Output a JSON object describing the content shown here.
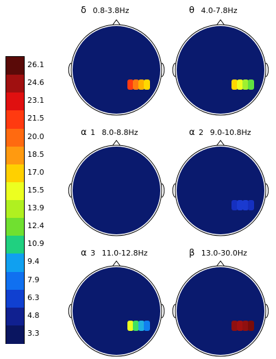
{
  "colorbar": {
    "labels": [
      "26.1",
      "24.6",
      "23.1",
      "21.5",
      "20.0",
      "18.5",
      "17.0",
      "15.5",
      "13.9",
      "12.4",
      "10.9",
      "9.4",
      "7.9",
      "6.3",
      "4.8",
      "3.3"
    ],
    "colors": [
      "#5a0a08",
      "#a01010",
      "#e01010",
      "#ff3a10",
      "#ff6a10",
      "#ff9a10",
      "#ffd000",
      "#ecff20",
      "#b0f020",
      "#70e030",
      "#20d080",
      "#10a0f0",
      "#1070f0",
      "#1040d0",
      "#102090",
      "#0a1560"
    ]
  },
  "background_color": "#0a1a6e",
  "maps": [
    {
      "symbol": "δ",
      "label": "0.8-3.8Hz",
      "spot_colors": [
        "#ff3a10",
        "#ff7a10",
        "#ffb000",
        "#ffd800"
      ]
    },
    {
      "symbol": "θ",
      "label": "4.0-7.8Hz",
      "spot_colors": [
        "#ffd800",
        "#ecff20",
        "#a0f030",
        "#60e040"
      ]
    },
    {
      "symbol": "α",
      "sub": "1",
      "label": "8.0-8.8Hz",
      "spot_colors": []
    },
    {
      "symbol": "α",
      "sub": "2",
      "label": "9.0-10.8Hz",
      "spot_colors": [
        "#1530c0",
        "#1a3ad0",
        "#1a3ad0",
        "#1530c0"
      ]
    },
    {
      "symbol": "α",
      "sub": "3",
      "label": "11.0-12.8Hz",
      "spot_colors": [
        "#ecff20",
        "#40e060",
        "#20b0e0",
        "#1080f0"
      ]
    },
    {
      "symbol": "β",
      "label": "13.0-30.0Hz",
      "spot_colors": [
        "#901010",
        "#a01010",
        "#901010",
        "#7a0c0a"
      ]
    }
  ]
}
